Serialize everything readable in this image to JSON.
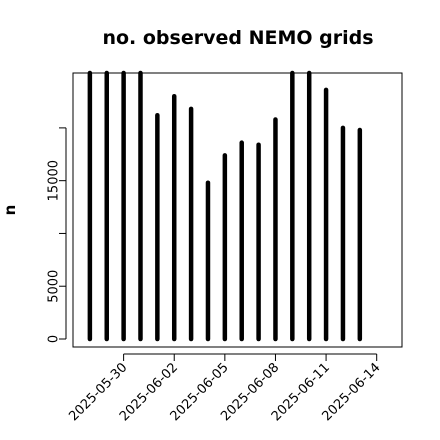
{
  "chart_data": {
    "type": "bar",
    "title": "no. observed NEMO grids",
    "xlabel": "",
    "ylabel": "n",
    "x_dates": [
      "2025-05-28",
      "2025-05-29",
      "2025-05-30",
      "2025-05-31",
      "2025-06-01",
      "2025-06-02",
      "2025-06-03",
      "2025-06-04",
      "2025-06-05",
      "2025-06-06",
      "2025-06-07",
      "2025-06-08",
      "2025-06-09",
      "2025-06-10",
      "2025-06-11",
      "2025-06-12",
      "2025-06-13",
      "2025-06-14"
    ],
    "values": [
      25500,
      25500,
      25500,
      25500,
      21200,
      23000,
      21800,
      14800,
      17400,
      18600,
      18400,
      20800,
      25500,
      25500,
      23600,
      20000,
      19800,
      0
    ],
    "y_ticks": [
      0,
      5000,
      10000,
      15000,
      20000
    ],
    "y_tick_labels": [
      "0",
      "5000",
      "",
      "15000",
      ""
    ],
    "ylim": [
      0,
      25200
    ],
    "x_ticks": [
      "2025-05-30",
      "2025-06-02",
      "2025-06-05",
      "2025-06-08",
      "2025-06-11",
      "2025-06-14"
    ],
    "x_tick_labels": [
      "2025-05-30",
      "2025-06-02",
      "2025-06-05",
      "2025-06-08",
      "2025-06-11",
      "2025-06-14"
    ],
    "xlim": [
      "2025-05-27T00:00",
      "2025-06-15T12:00"
    ],
    "bar_color": "#000000",
    "grid": false,
    "legend": "none"
  }
}
